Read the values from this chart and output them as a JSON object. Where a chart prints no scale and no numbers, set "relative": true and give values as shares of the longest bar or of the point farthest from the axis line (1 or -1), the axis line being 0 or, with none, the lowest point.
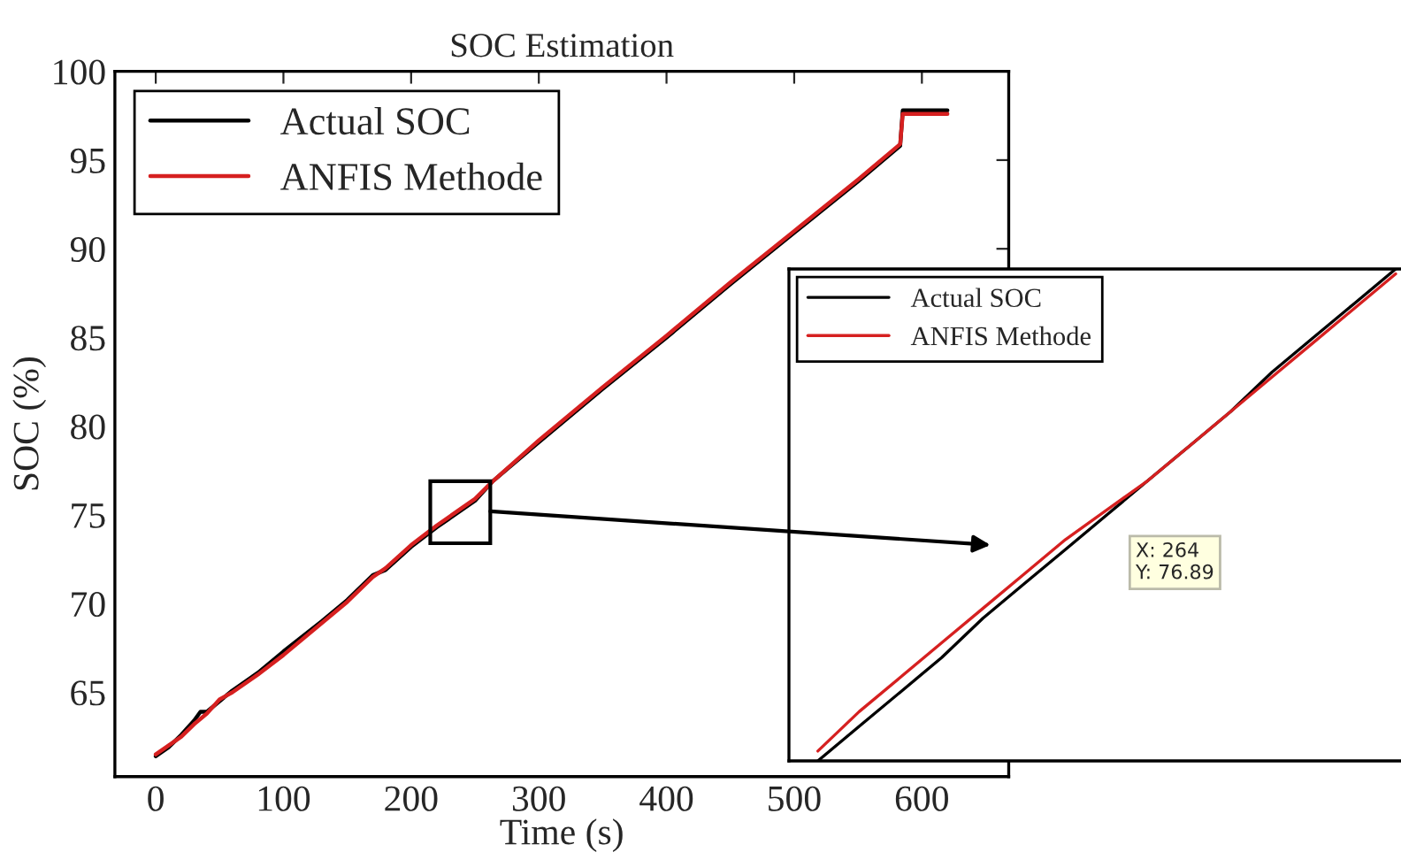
{
  "chart_data": [
    {
      "type": "line",
      "title": "SOC Estimation",
      "xlabel": "Time (s)",
      "ylabel": "SOC (%)",
      "xlim": [
        -32,
        668
      ],
      "ylim": [
        60.25,
        100
      ],
      "xticks": [
        0,
        100,
        200,
        300,
        400,
        500,
        600
      ],
      "yticks": [
        65,
        70,
        75,
        80,
        85,
        90,
        95,
        100
      ],
      "legend": "top left",
      "grid": false,
      "series": [
        {
          "name": "Actual SOC",
          "color": "#000000",
          "x": [
            0,
            10,
            20,
            30,
            35,
            40,
            50,
            60,
            80,
            100,
            130,
            150,
            170,
            180,
            200,
            220,
            240,
            250,
            264,
            300,
            350,
            400,
            450,
            500,
            550,
            583,
            585,
            620
          ],
          "values": [
            61.4,
            61.9,
            62.6,
            63.4,
            63.9,
            63.9,
            64.5,
            65.1,
            66.1,
            67.3,
            69.0,
            70.2,
            71.6,
            71.9,
            73.2,
            74.3,
            75.3,
            75.8,
            76.9,
            79.1,
            82.1,
            85.0,
            88.0,
            90.9,
            93.8,
            95.8,
            97.8,
            97.8
          ]
        },
        {
          "name": "ANFIS Methode",
          "color": "#d62020",
          "x": [
            0,
            10,
            20,
            30,
            40,
            50,
            60,
            80,
            100,
            130,
            150,
            170,
            180,
            200,
            220,
            240,
            250,
            264,
            300,
            350,
            400,
            450,
            500,
            550,
            583,
            585,
            620
          ],
          "values": [
            61.5,
            62.0,
            62.5,
            63.2,
            63.8,
            64.6,
            65.0,
            66.0,
            67.1,
            68.9,
            70.1,
            71.5,
            72.0,
            73.3,
            74.4,
            75.4,
            75.9,
            76.9,
            79.2,
            82.2,
            85.1,
            88.1,
            91.0,
            93.9,
            95.9,
            97.6,
            97.6
          ]
        }
      ]
    },
    {
      "type": "line",
      "relative": true,
      "categories": [
        null,
        null,
        null,
        null,
        null,
        null,
        null,
        null,
        null,
        null,
        null,
        null,
        null,
        null,
        null
      ],
      "legend": "top left",
      "grid": false,
      "annotations": [
        "X: 264\nY: 76.89"
      ],
      "series": [
        {
          "name": "Actual SOC",
          "color": "#000000",
          "values": [
            0.0,
            0.07,
            0.14,
            0.21,
            0.29,
            0.36,
            0.43,
            0.5,
            0.57,
            0.64,
            0.71,
            0.79,
            0.86,
            0.93,
            1.0
          ]
        },
        {
          "name": "ANFIS Methode",
          "color": "#d62020",
          "values": [
            0.02,
            0.1,
            0.17,
            0.24,
            0.31,
            0.38,
            0.45,
            0.51,
            0.57,
            0.64,
            0.71,
            0.78,
            0.85,
            0.92,
            0.99
          ]
        }
      ]
    }
  ]
}
